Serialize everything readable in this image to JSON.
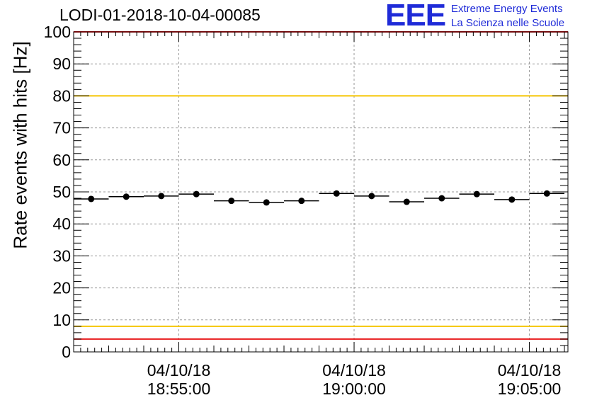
{
  "header": {
    "title": "LODI-01-2018-10-04-00085",
    "logo_text": "EEE",
    "logo_line1": "Extreme Energy Events",
    "logo_line2": "La Scienza nelle Scuole"
  },
  "chart_data": {
    "type": "scatter",
    "title": "LODI-01-2018-10-04-00085",
    "ylabel": "Rate events with hits [Hz]",
    "xlabel": "",
    "ylim": [
      0,
      100
    ],
    "xlim": [
      0,
      14.1
    ],
    "grid": true,
    "yticks": [
      0,
      10,
      20,
      30,
      40,
      50,
      60,
      70,
      80,
      90,
      100
    ],
    "xticks": [
      {
        "x": 3.0,
        "date": "04/10/18",
        "time": "18:55:00"
      },
      {
        "x": 8.0,
        "date": "04/10/18",
        "time": "19:00:00"
      },
      {
        "x": 13.0,
        "date": "04/10/18",
        "time": "19:05:00"
      }
    ],
    "reference_lines": [
      {
        "y": 100,
        "color": "#e8191b"
      },
      {
        "y": 80,
        "color": "#f5c500"
      },
      {
        "y": 8,
        "color": "#f5c500"
      },
      {
        "y": 4,
        "color": "#e8191b"
      }
    ],
    "series": [
      {
        "name": "rate",
        "x": [
          0.5,
          1.5,
          2.5,
          3.5,
          4.5,
          5.5,
          6.5,
          7.5,
          8.5,
          9.5,
          10.5,
          11.5,
          12.5,
          13.5
        ],
        "x_halfwidth": 0.5,
        "values": [
          47.8,
          48.5,
          48.7,
          49.3,
          47.2,
          46.7,
          47.2,
          49.5,
          48.7,
          46.9,
          48.0,
          49.3,
          47.6,
          49.5
        ]
      }
    ]
  },
  "colors": {
    "marker": "#000000",
    "grid": "#9a9a9a",
    "logo": "#1f2bd8"
  }
}
